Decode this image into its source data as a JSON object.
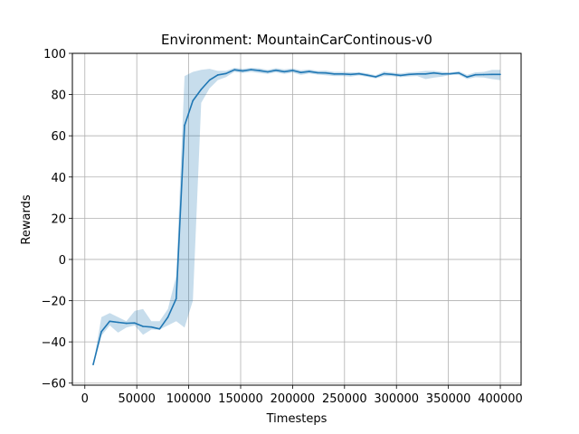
{
  "chart_data": {
    "type": "line",
    "title": "Environment: MountainCarContinous-v0",
    "xlabel": "Timesteps",
    "ylabel": "Rewards",
    "xlim": [
      -12000,
      420000
    ],
    "ylim": [
      -61,
      100
    ],
    "xticks": [
      0,
      50000,
      100000,
      150000,
      200000,
      250000,
      300000,
      350000,
      400000
    ],
    "yticks": [
      -60,
      -40,
      -20,
      0,
      20,
      40,
      60,
      80,
      100
    ],
    "xtick_labels": [
      "0",
      "50000",
      "100000",
      "150000",
      "200000",
      "250000",
      "300000",
      "350000",
      "400000"
    ],
    "ytick_labels": [
      "−60",
      "−40",
      "−20",
      "0",
      "20",
      "40",
      "60",
      "80",
      "100"
    ],
    "grid": true,
    "legend": false,
    "line_color": "#1f77b4",
    "band_color": "#1f77b4",
    "series": [
      {
        "x": [
          8000,
          16000,
          24000,
          32000,
          40000,
          48000,
          56000,
          64000,
          72000,
          80000,
          88000,
          96000,
          104000,
          112000,
          120000,
          128000,
          136000,
          144000,
          152000,
          160000,
          168000,
          176000,
          184000,
          192000,
          200000,
          208000,
          216000,
          224000,
          232000,
          240000,
          248000,
          256000,
          264000,
          272000,
          280000,
          288000,
          296000,
          304000,
          312000,
          320000,
          328000,
          336000,
          344000,
          352000,
          360000,
          368000,
          376000,
          384000,
          392000,
          400000
        ],
        "y": [
          -51,
          -35,
          -30,
          -30.5,
          -31,
          -30.8,
          -32.5,
          -32.8,
          -33.7,
          -28,
          -19,
          65,
          77,
          82.5,
          87,
          89.5,
          90.2,
          92,
          91.5,
          92.1,
          91.6,
          91,
          91.8,
          91.1,
          91.7,
          90.7,
          91.2,
          90.6,
          90.5,
          90,
          90,
          89.8,
          90.1,
          89.4,
          88.6,
          90.1,
          89.8,
          89.3,
          89.8,
          90,
          90,
          90.5,
          90,
          90.1,
          90.5,
          88.5,
          89.6,
          89.7,
          89.8,
          89.8
        ],
        "lower": [
          -51,
          -37,
          -32,
          -35.5,
          -33,
          -32,
          -36.5,
          -34,
          -34,
          -32,
          -30,
          -33,
          -20,
          76,
          83,
          87,
          88.5,
          91,
          90.5,
          91,
          90.5,
          90,
          90.8,
          90,
          90.7,
          89.5,
          90.2,
          89.7,
          89.4,
          89,
          89,
          88.7,
          89.3,
          88.6,
          87.8,
          89,
          88.9,
          88.4,
          88.8,
          89,
          87.5,
          88.2,
          88.7,
          89.5,
          89.6,
          87.5,
          88.4,
          88.3,
          87.5,
          87
        ],
        "upper": [
          -51,
          -28,
          -26,
          -28,
          -30,
          -25,
          -24,
          -30,
          -30,
          -24,
          -8,
          89,
          91,
          92,
          92.5,
          91.5,
          91.5,
          93,
          92.5,
          93,
          92.7,
          92,
          92.8,
          92.2,
          92.7,
          91.8,
          92.2,
          91.5,
          91.6,
          91,
          91,
          90.8,
          90.9,
          90.2,
          89.4,
          91.2,
          90.7,
          90.2,
          90.8,
          91,
          91.5,
          91.5,
          91,
          90.7,
          91.4,
          89.5,
          90.8,
          91,
          92,
          92
        ]
      }
    ]
  }
}
